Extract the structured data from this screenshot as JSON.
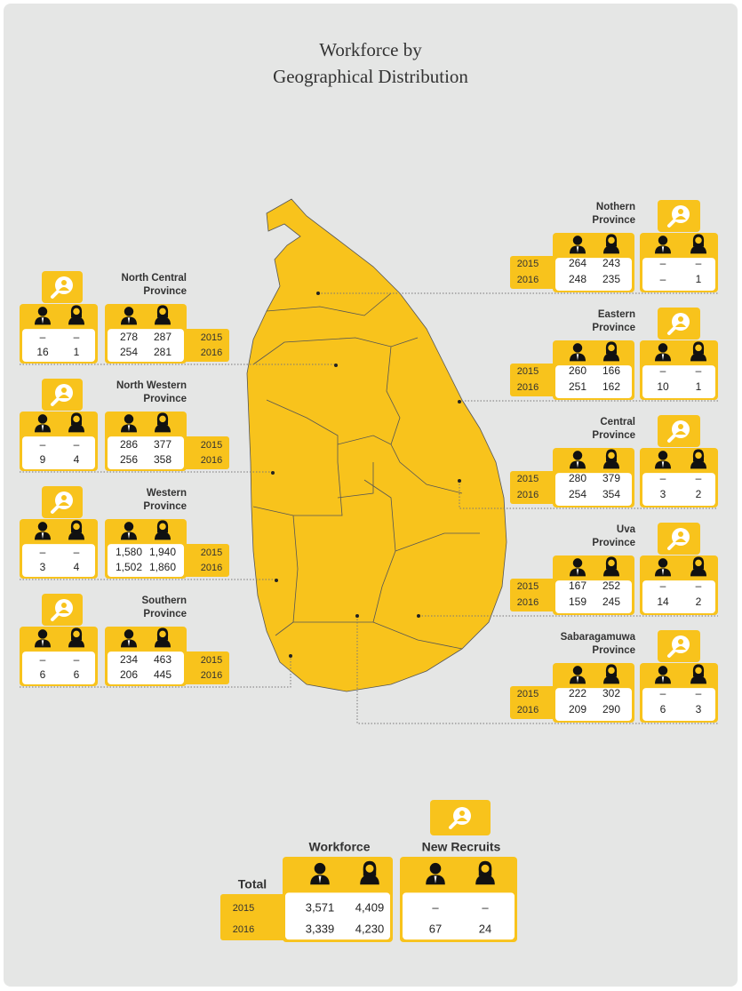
{
  "title": [
    "Workforce by",
    "Geographical Distribution"
  ],
  "left_provinces": [
    {
      "name": [
        "North Central",
        "Province"
      ],
      "years": [
        "2015",
        "2016"
      ],
      "workforce": [
        [
          "278",
          "287"
        ],
        [
          "254",
          "281"
        ]
      ],
      "new_recruits": [
        [
          "–",
          "–"
        ],
        [
          "16",
          "1"
        ]
      ]
    },
    {
      "name": [
        "North Western",
        "Province"
      ],
      "years": [
        "2015",
        "2016"
      ],
      "workforce": [
        [
          "286",
          "377"
        ],
        [
          "256",
          "358"
        ]
      ],
      "new_recruits": [
        [
          "–",
          "–"
        ],
        [
          "9",
          "4"
        ]
      ]
    },
    {
      "name": [
        "Western",
        "Province"
      ],
      "years": [
        "2015",
        "2016"
      ],
      "workforce": [
        [
          "1,580",
          "1,940"
        ],
        [
          "1,502",
          "1,860"
        ]
      ],
      "new_recruits": [
        [
          "–",
          "–"
        ],
        [
          "3",
          "4"
        ]
      ]
    },
    {
      "name": [
        "Southern",
        "Province"
      ],
      "years": [
        "2015",
        "2016"
      ],
      "workforce": [
        [
          "234",
          "463"
        ],
        [
          "206",
          "445"
        ]
      ],
      "new_recruits": [
        [
          "–",
          "–"
        ],
        [
          "6",
          "6"
        ]
      ]
    }
  ],
  "right_provinces": [
    {
      "name": [
        "Nothern",
        "Province"
      ],
      "years": [
        "2015",
        "2016"
      ],
      "workforce": [
        [
          "264",
          "243"
        ],
        [
          "248",
          "235"
        ]
      ],
      "new_recruits": [
        [
          "–",
          "–"
        ],
        [
          "–",
          "1"
        ]
      ]
    },
    {
      "name": [
        "Eastern",
        "Province"
      ],
      "years": [
        "2015",
        "2016"
      ],
      "workforce": [
        [
          "260",
          "166"
        ],
        [
          "251",
          "162"
        ]
      ],
      "new_recruits": [
        [
          "–",
          "–"
        ],
        [
          "10",
          "1"
        ]
      ]
    },
    {
      "name": [
        "Central",
        "Province"
      ],
      "years": [
        "2015",
        "2016"
      ],
      "workforce": [
        [
          "280",
          "379"
        ],
        [
          "254",
          "354"
        ]
      ],
      "new_recruits": [
        [
          "–",
          "–"
        ],
        [
          "3",
          "2"
        ]
      ]
    },
    {
      "name": [
        "Uva",
        "Province"
      ],
      "years": [
        "2015",
        "2016"
      ],
      "workforce": [
        [
          "167",
          "252"
        ],
        [
          "159",
          "245"
        ]
      ],
      "new_recruits": [
        [
          "–",
          "–"
        ],
        [
          "14",
          "2"
        ]
      ]
    },
    {
      "name": [
        "Sabaragamuwa",
        "Province"
      ],
      "years": [
        "2015",
        "2016"
      ],
      "workforce": [
        [
          "222",
          "302"
        ],
        [
          "209",
          "290"
        ]
      ],
      "new_recruits": [
        [
          "–",
          "–"
        ],
        [
          "6",
          "3"
        ]
      ]
    }
  ],
  "total": {
    "label": "Total",
    "workforce_label": "Workforce",
    "new_recruits_label": "New Recruits",
    "years": [
      "2015",
      "2016"
    ],
    "workforce": [
      [
        "3,571",
        "4,409"
      ],
      [
        "3,339",
        "4,230"
      ]
    ],
    "new_recruits": [
      [
        "–",
        "–"
      ],
      [
        "67",
        "24"
      ]
    ]
  }
}
